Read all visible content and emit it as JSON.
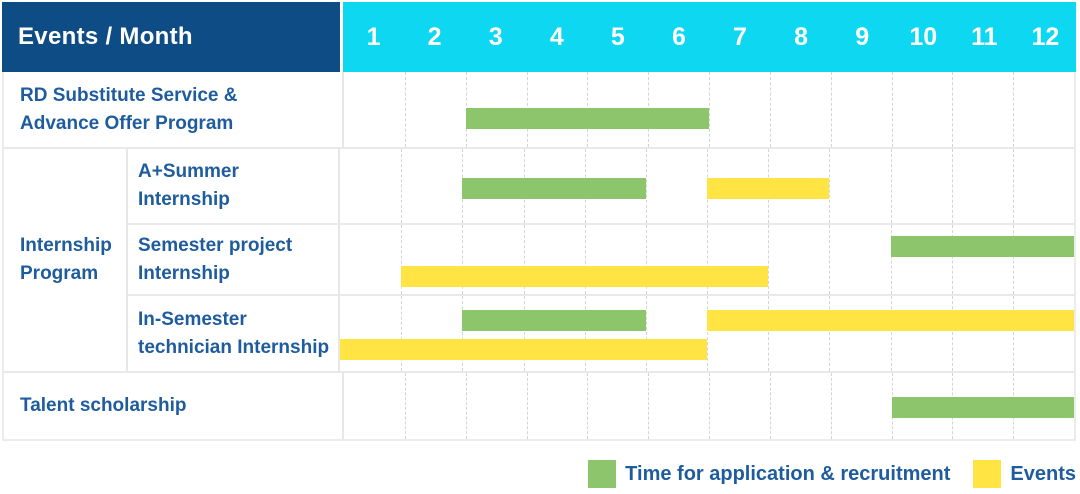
{
  "header": {
    "title": "Events / Month",
    "months": [
      "1",
      "2",
      "3",
      "4",
      "5",
      "6",
      "7",
      "8",
      "9",
      "10",
      "11",
      "12"
    ]
  },
  "group": {
    "lines": [
      "Internship",
      "Program"
    ]
  },
  "rows": [
    {
      "lines": [
        "RD Substitute Service &",
        "Advance Offer Program"
      ]
    },
    {
      "lines": [
        "A+Summer",
        "Internship"
      ]
    },
    {
      "lines": [
        "Semester project",
        "Internship"
      ]
    },
    {
      "lines": [
        "In-Semester",
        "technician Internship"
      ]
    },
    {
      "lines": [
        "Talent scholarship"
      ]
    }
  ],
  "legend": {
    "items": [
      {
        "kind": "recruitment",
        "label": "Time for application & recruitment"
      },
      {
        "kind": "events",
        "label": "Events"
      }
    ]
  },
  "colors": {
    "header_bg": "#0E4C85",
    "month_header_bg": "#0ED7F2",
    "header_text": "#FFFFFF",
    "label_text": "#1E5C9E",
    "bar_recruitment": "#8CC56B",
    "bar_events": "#FFE444",
    "grid_line": "#D4D4D4",
    "row_border": "#E9E9E9",
    "table_border": "#ECECEC",
    "background": "#FFFFFF"
  },
  "chart_data": {
    "type": "bar",
    "variant": "gantt-schedule",
    "title": "Events / Month",
    "x_categories": [
      1,
      2,
      3,
      4,
      5,
      6,
      7,
      8,
      9,
      10,
      11,
      12
    ],
    "x_unit": "month",
    "grid": "vertical-dashed-month-lines",
    "legend_position": "bottom-right",
    "series_legend": [
      "Time for application & recruitment",
      "Events"
    ],
    "rows": [
      {
        "group": "",
        "label": "RD Substitute Service & Advance Offer Program",
        "bars": [
          {
            "kind": "recruitment",
            "series": "Time for application & recruitment",
            "start_month": 3,
            "end_month": 6,
            "track": 0
          }
        ]
      },
      {
        "group": "Internship Program",
        "label": "A+Summer Internship",
        "bars": [
          {
            "kind": "recruitment",
            "series": "Time for application & recruitment",
            "start_month": 3,
            "end_month": 5,
            "track": 0
          },
          {
            "kind": "events",
            "series": "Events",
            "start_month": 7,
            "end_month": 8,
            "track": 0
          }
        ]
      },
      {
        "group": "Internship Program",
        "label": "Semester project Internship",
        "bars": [
          {
            "kind": "recruitment",
            "series": "Time for application & recruitment",
            "start_month": 10,
            "end_month": 12,
            "track": 0
          },
          {
            "kind": "events",
            "series": "Events",
            "start_month": 2,
            "end_month": 7,
            "track": 1
          }
        ]
      },
      {
        "group": "Internship Program",
        "label": "In-Semester technician Internship",
        "bars": [
          {
            "kind": "recruitment",
            "series": "Time for application & recruitment",
            "start_month": 3,
            "end_month": 5,
            "track": 0
          },
          {
            "kind": "events",
            "series": "Events",
            "start_month": 7,
            "end_month": 12,
            "track": 0
          },
          {
            "kind": "events",
            "series": "Events",
            "start_month": 1,
            "end_month": 6,
            "track": 1
          }
        ]
      },
      {
        "group": "",
        "label": "Talent scholarship",
        "bars": [
          {
            "kind": "recruitment",
            "series": "Time for application & recruitment",
            "start_month": 10,
            "end_month": 12,
            "track": 0
          }
        ]
      }
    ]
  }
}
